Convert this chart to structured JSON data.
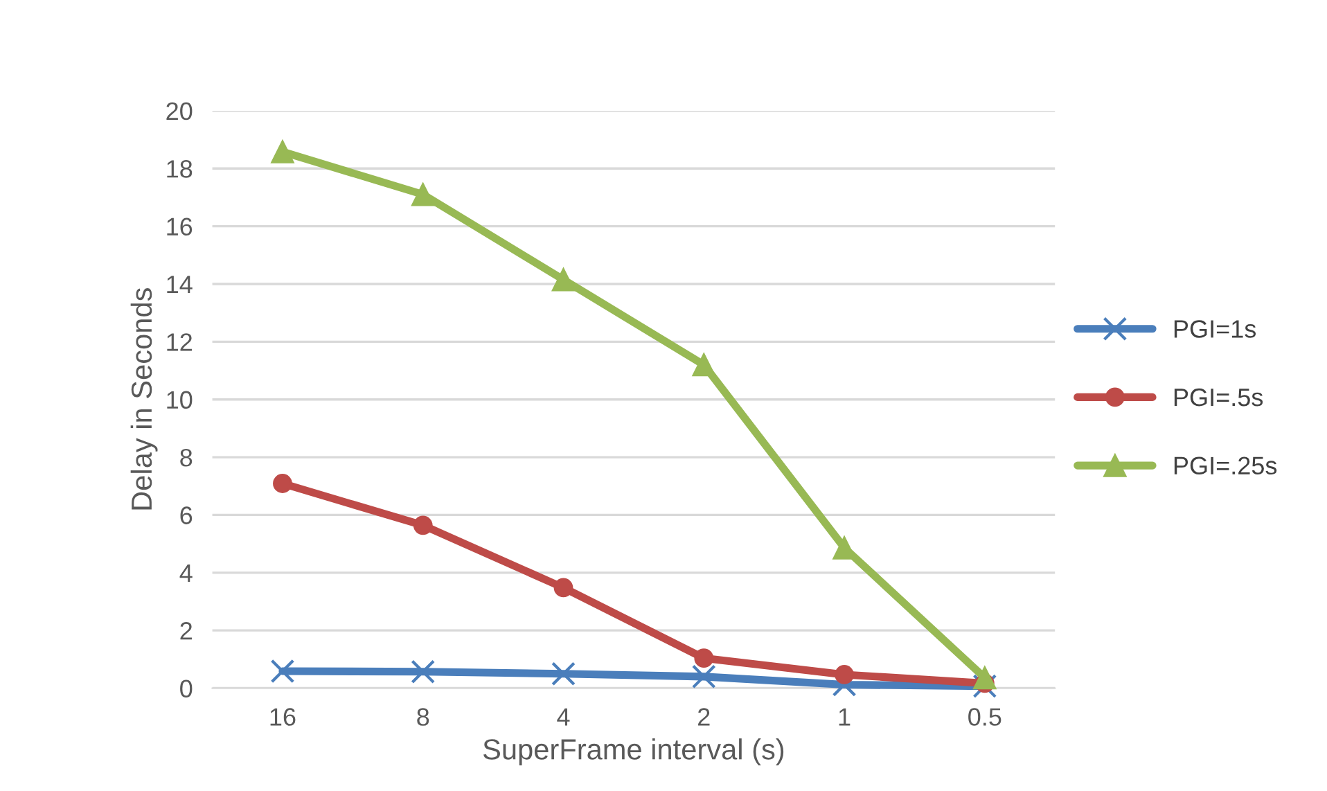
{
  "chart_data": {
    "type": "line",
    "xlabel": "SuperFrame interval (s)",
    "ylabel": "Delay in Seconds",
    "categories": [
      "16",
      "8",
      "4",
      "2",
      "1",
      "0.5"
    ],
    "series": [
      {
        "name": "PGI=1s",
        "color": "#4a7ebb",
        "marker": "cross",
        "values": [
          0.59,
          0.57,
          0.5,
          0.4,
          0.12,
          0.07
        ]
      },
      {
        "name": "PGI=.5s",
        "color": "#be4b48",
        "marker": "circle",
        "values": [
          7.09,
          5.64,
          3.48,
          1.04,
          0.47,
          0.17
        ]
      },
      {
        "name": "PGI=.25s",
        "color": "#98b954",
        "marker": "triangle",
        "values": [
          18.58,
          17.1,
          14.15,
          11.2,
          4.86,
          0.36
        ]
      }
    ],
    "ylim": [
      0,
      20
    ],
    "yticks": [
      0,
      2,
      4,
      6,
      8,
      10,
      12,
      14,
      16,
      18,
      20
    ],
    "grid": "y",
    "legend": "right"
  }
}
